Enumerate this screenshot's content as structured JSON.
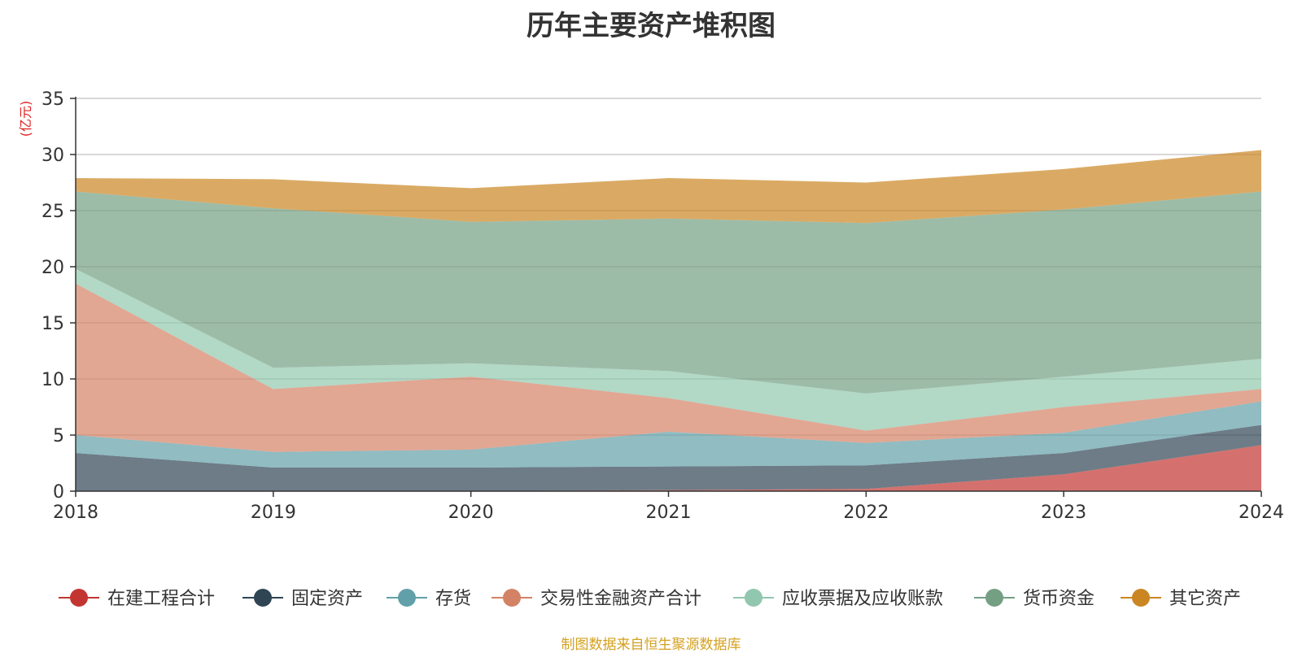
{
  "title": "历年主要资产堆积图",
  "source_note": "制图数据来自恒生聚源数据库",
  "chart_data": {
    "type": "area",
    "stacked": true,
    "title": "历年主要资产堆积图",
    "y_unit": "(亿元)",
    "categories": [
      "2018",
      "2019",
      "2020",
      "2021",
      "2022",
      "2023",
      "2024"
    ],
    "ylim": [
      0,
      35
    ],
    "y_ticks": [
      0,
      5,
      10,
      15,
      20,
      25,
      30,
      35
    ],
    "grid": true,
    "legend_position": "bottom",
    "series": [
      {
        "name": "在建工程合计",
        "color": "#c23531",
        "values": [
          0.0,
          0.0,
          0.0,
          0.1,
          0.2,
          1.5,
          4.1
        ]
      },
      {
        "name": "固定资产",
        "color": "#2f4554",
        "values": [
          3.4,
          2.1,
          2.1,
          2.1,
          2.1,
          1.9,
          1.8
        ]
      },
      {
        "name": "存货",
        "color": "#61a0a8",
        "values": [
          1.6,
          1.4,
          1.6,
          3.1,
          2.0,
          1.8,
          2.1
        ]
      },
      {
        "name": "交易性金融资产合计",
        "color": "#d48265",
        "values": [
          13.5,
          5.6,
          6.5,
          3.0,
          1.1,
          2.3,
          1.1
        ]
      },
      {
        "name": "应收票据及应收账款",
        "color": "#91c7ae",
        "values": [
          1.3,
          1.9,
          1.2,
          2.4,
          3.3,
          2.7,
          2.7
        ]
      },
      {
        "name": "货币资金",
        "color": "#749f83",
        "values": [
          6.9,
          14.2,
          12.6,
          13.6,
          15.2,
          14.9,
          14.9
        ]
      },
      {
        "name": "其它资产",
        "color": "#ca8622",
        "values": [
          1.2,
          2.6,
          3.0,
          3.6,
          3.6,
          3.6,
          3.7
        ]
      }
    ]
  }
}
